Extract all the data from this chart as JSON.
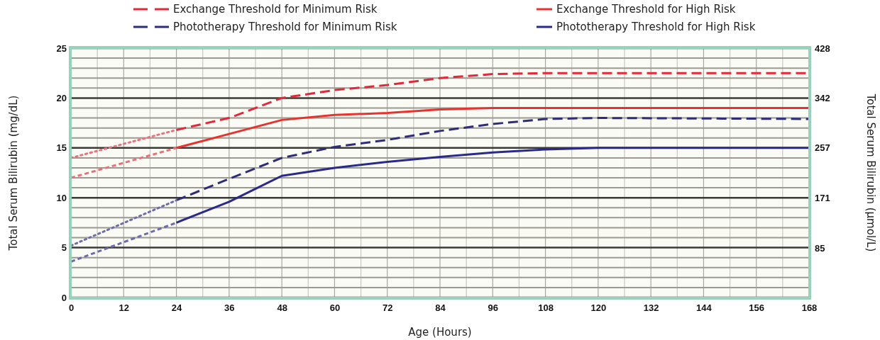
{
  "chart_data": {
    "type": "line",
    "xlabel": "Age (Hours)",
    "ylabel": "Total Serum Bilirubin (mg/dL)",
    "y2label": "Total Serum Bilirubin (µmol/L)",
    "xlim": [
      0,
      168
    ],
    "ylim": [
      0,
      25
    ],
    "y2lim": [
      0,
      428
    ],
    "xticks": [
      0,
      {
        "value": 6,
        "label": null
      },
      12,
      {
        "value": 18,
        "label": null
      },
      24,
      {
        "value": 30,
        "label": null
      },
      36,
      {
        "value": 42,
        "label": null
      },
      48,
      {
        "value": 54,
        "label": null
      },
      60,
      {
        "value": 66,
        "label": null
      },
      72,
      {
        "value": 78,
        "label": null
      },
      84,
      {
        "value": 90,
        "label": null
      },
      96,
      {
        "value": 102,
        "label": null
      },
      108,
      {
        "value": 114,
        "label": null
      },
      120,
      {
        "value": 126,
        "label": null
      },
      132,
      {
        "value": 138,
        "label": null
      },
      144,
      {
        "value": 150,
        "label": null
      },
      156,
      {
        "value": 162,
        "label": null
      },
      168
    ],
    "yticks": [
      0,
      {
        "value": 1,
        "label": null
      },
      {
        "value": 2,
        "label": null
      },
      {
        "value": 3,
        "label": null
      },
      {
        "value": 4,
        "label": null
      },
      5,
      {
        "value": 6,
        "label": null
      },
      {
        "value": 7,
        "label": null
      },
      {
        "value": 8,
        "label": null
      },
      {
        "value": 9,
        "label": null
      },
      10,
      {
        "value": 11,
        "label": null
      },
      {
        "value": 12,
        "label": null
      },
      {
        "value": 13,
        "label": null
      },
      {
        "value": 14,
        "label": null
      },
      15,
      {
        "value": 16,
        "label": null
      },
      {
        "value": 17,
        "label": null
      },
      {
        "value": 18,
        "label": null
      },
      {
        "value": 19,
        "label": null
      },
      20,
      {
        "value": 21,
        "label": null
      },
      {
        "value": 22,
        "label": null
      },
      {
        "value": 23,
        "label": null
      },
      {
        "value": 24,
        "label": null
      },
      25
    ],
    "y2ticks": [
      85,
      171,
      257,
      342,
      428
    ],
    "grid": true,
    "legend": "top",
    "marker": "none",
    "series": [
      {
        "name": "Exchange Threshold for Minimum Risk",
        "color": "#e2283a",
        "line_style": "dashed",
        "x": [
          24,
          36,
          48,
          60,
          72,
          84,
          96,
          108,
          168
        ],
        "values": [
          16.8,
          18,
          20,
          20.8,
          21.3,
          22,
          22.4,
          22.5,
          22.5
        ]
      },
      {
        "name": "Exchange Threshold for High Risk",
        "color": "#e8322e",
        "line_style": "solid",
        "x": [
          24,
          36,
          48,
          60,
          72,
          84,
          96,
          168
        ],
        "values": [
          15,
          16.4,
          17.8,
          18.3,
          18.5,
          18.85,
          19,
          19
        ]
      },
      {
        "name": "Phototherapy Threshold for Minimum Risk",
        "color": "#2e2d7c",
        "line_style": "dashed",
        "x": [
          24,
          36,
          48,
          60,
          72,
          84,
          96,
          108,
          120,
          168
        ],
        "values": [
          9.75,
          11.9,
          14,
          15.1,
          15.8,
          16.7,
          17.4,
          17.9,
          18,
          17.9
        ]
      },
      {
        "name": "Phototherapy Threshold for High Risk",
        "color": "#2a2a8c",
        "line_style": "solid",
        "x": [
          24,
          36,
          48,
          60,
          72,
          84,
          96,
          108,
          120,
          168
        ],
        "values": [
          7.5,
          9.6,
          12.2,
          13,
          13.6,
          14.1,
          14.55,
          14.85,
          15,
          15
        ]
      },
      {
        "color": "#e8737e",
        "line_style": "dotted",
        "x": [
          0,
          24
        ],
        "values": [
          14,
          16.8
        ]
      },
      {
        "color": "#ea6f78",
        "line_style": "dashed",
        "x": [
          0,
          24
        ],
        "values": [
          12,
          15
        ]
      },
      {
        "color": "#6e6dab",
        "line_style": "dotted",
        "x": [
          0,
          24
        ],
        "values": [
          5.2,
          9.75
        ]
      },
      {
        "color": "#6b6bae",
        "line_style": "dashed",
        "x": [
          0,
          24
        ],
        "values": [
          3.6,
          7.5
        ]
      }
    ]
  }
}
